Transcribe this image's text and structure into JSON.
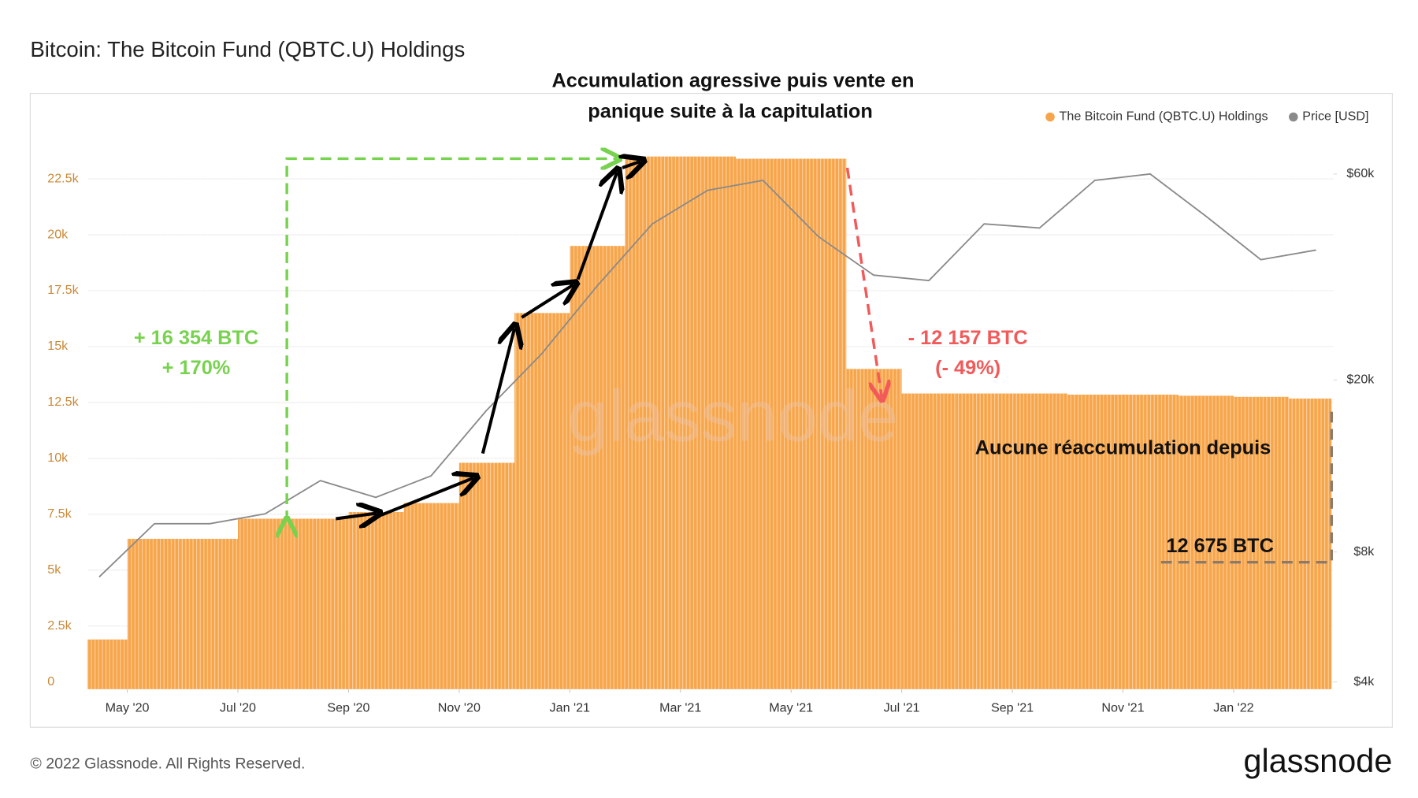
{
  "chart_data": {
    "type": "combo",
    "title": "Bitcoin: The Bitcoin Fund (QBTC.U) Holdings",
    "heading": [
      "Accumulation agressive puis vente en",
      "panique suite à la capitulation"
    ],
    "gain_label": [
      "+ 16 354 BTC",
      "+ 170%"
    ],
    "loss_label": [
      "- 12 157 BTC",
      "(- 49%)"
    ],
    "note": "Aucune  réaccumulation depuis",
    "final_label": "12 675 BTC",
    "watermark": "glassnode",
    "footer": "© 2022 Glassnode. All Rights Reserved.",
    "brand": "glassnode",
    "x": [
      "2020-04",
      "2020-05",
      "2020-06",
      "2020-07",
      "2020-08",
      "2020-09",
      "2020-10",
      "2020-11",
      "2020-12",
      "2021-01",
      "2021-02",
      "2021-03",
      "2021-04",
      "2021-05",
      "2021-06",
      "2021-07",
      "2021-08",
      "2021-09",
      "2021-10",
      "2021-11",
      "2021-12",
      "2022-01",
      "2022-02"
    ],
    "xlim": [
      "2020-04",
      "2022-03"
    ],
    "xticks": [
      {
        "value": "2020-05",
        "label": "May '20"
      },
      {
        "value": "2020-07",
        "label": "Jul '20"
      },
      {
        "value": "2020-09",
        "label": "Sep '20"
      },
      {
        "value": "2020-11",
        "label": "Nov '20"
      },
      {
        "value": "2021-01",
        "label": "Jan '21"
      },
      {
        "value": "2021-03",
        "label": "Mar '21"
      },
      {
        "value": "2021-05",
        "label": "May '21"
      },
      {
        "value": "2021-07",
        "label": "Jul '21"
      },
      {
        "value": "2021-09",
        "label": "Sep '21"
      },
      {
        "value": "2021-11",
        "label": "Nov '21"
      },
      {
        "value": "2022-01",
        "label": "Jan '22"
      }
    ],
    "ylim": [
      0,
      24700
    ],
    "yticks": [
      0,
      {
        "value": 2500,
        "label": "2.5k"
      },
      {
        "value": 5000,
        "label": "5k"
      },
      {
        "value": 7500,
        "label": "7.5k"
      },
      {
        "value": 10000,
        "label": "10k"
      },
      {
        "value": 12500,
        "label": "12.5k"
      },
      {
        "value": 15000,
        "label": "15k"
      },
      {
        "value": 17500,
        "label": "17.5k"
      },
      {
        "value": 20000,
        "label": "20k"
      },
      {
        "value": 22500,
        "label": "22.5k"
      }
    ],
    "y2lim": [
      4000,
      76000
    ],
    "y2log": true,
    "y2ticks": [
      {
        "value": 4000,
        "label": "$4k"
      },
      {
        "value": 8000,
        "label": "$8k"
      },
      {
        "value": 20000,
        "label": "$20k"
      },
      {
        "value": 60000,
        "label": "$60k"
      }
    ],
    "grid": true,
    "legend": "top-right",
    "series": [
      {
        "name": "The Bitcoin Fund (QBTC.U) Holdings",
        "color": "#f7a54a",
        "values": [
          1900,
          6400,
          6400,
          7300,
          7300,
          7600,
          8000,
          9800,
          16500,
          19500,
          23500,
          23500,
          23400,
          23400,
          14000,
          12900,
          12900,
          12900,
          12850,
          12850,
          12800,
          12750,
          12675
        ]
      },
      {
        "name": "Price [USD]",
        "color": "#8a8a8a",
        "axis": "y2",
        "values": [
          7000,
          9300,
          9300,
          9800,
          11700,
          10700,
          12000,
          17000,
          23000,
          33000,
          46000,
          55000,
          58000,
          43000,
          35000,
          34000,
          46000,
          45000,
          58000,
          60000,
          48000,
          38000,
          40000
        ]
      }
    ]
  }
}
